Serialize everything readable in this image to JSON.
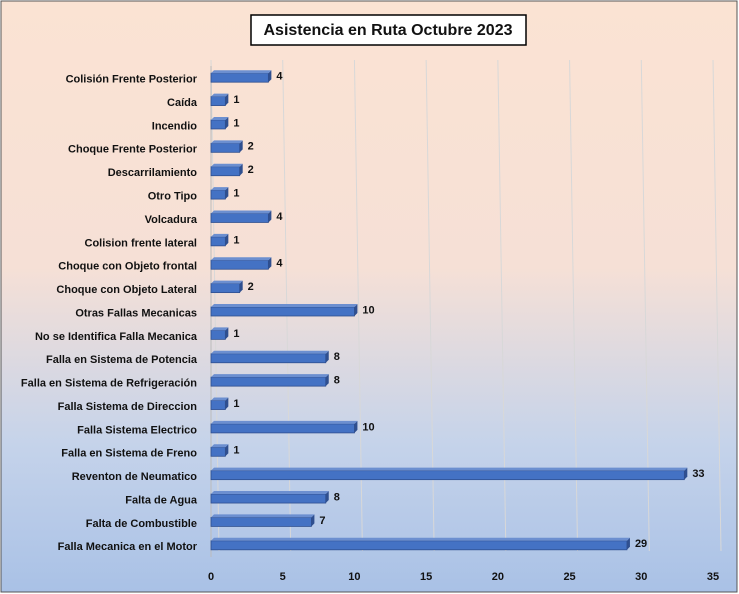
{
  "chart_data": {
    "type": "barh",
    "title": "Asistencia en Ruta Octubre 2023",
    "categories": [
      "Colisión Frente Posterior",
      "Caída",
      "Incendio",
      "Choque Frente Posterior",
      "Descarrilamiento",
      "Otro Tipo",
      "Volcadura",
      "Colision frente lateral",
      "Choque con Objeto frontal",
      "Choque con Objeto Lateral",
      "Otras Fallas Mecanicas",
      "No se Identifica Falla Mecanica",
      "Falla en Sistema de Potencia",
      "Falla en Sistema de Refrigeración",
      "Falla Sistema de Direccion",
      "Falla Sistema Electrico",
      "Falla en Sistema de Freno",
      "Reventon de Neumatico",
      "Falta de Agua",
      "Falta de Combustible",
      "Falla Mecanica en el Motor"
    ],
    "values": [
      4,
      1,
      1,
      2,
      2,
      1,
      4,
      1,
      4,
      2,
      10,
      1,
      8,
      8,
      1,
      10,
      1,
      33,
      8,
      7,
      29
    ],
    "color": "#4472c4",
    "xlim": [
      0,
      35
    ],
    "xticks": [
      0,
      5,
      10,
      15,
      20,
      25,
      30,
      35
    ],
    "grid": true
  }
}
